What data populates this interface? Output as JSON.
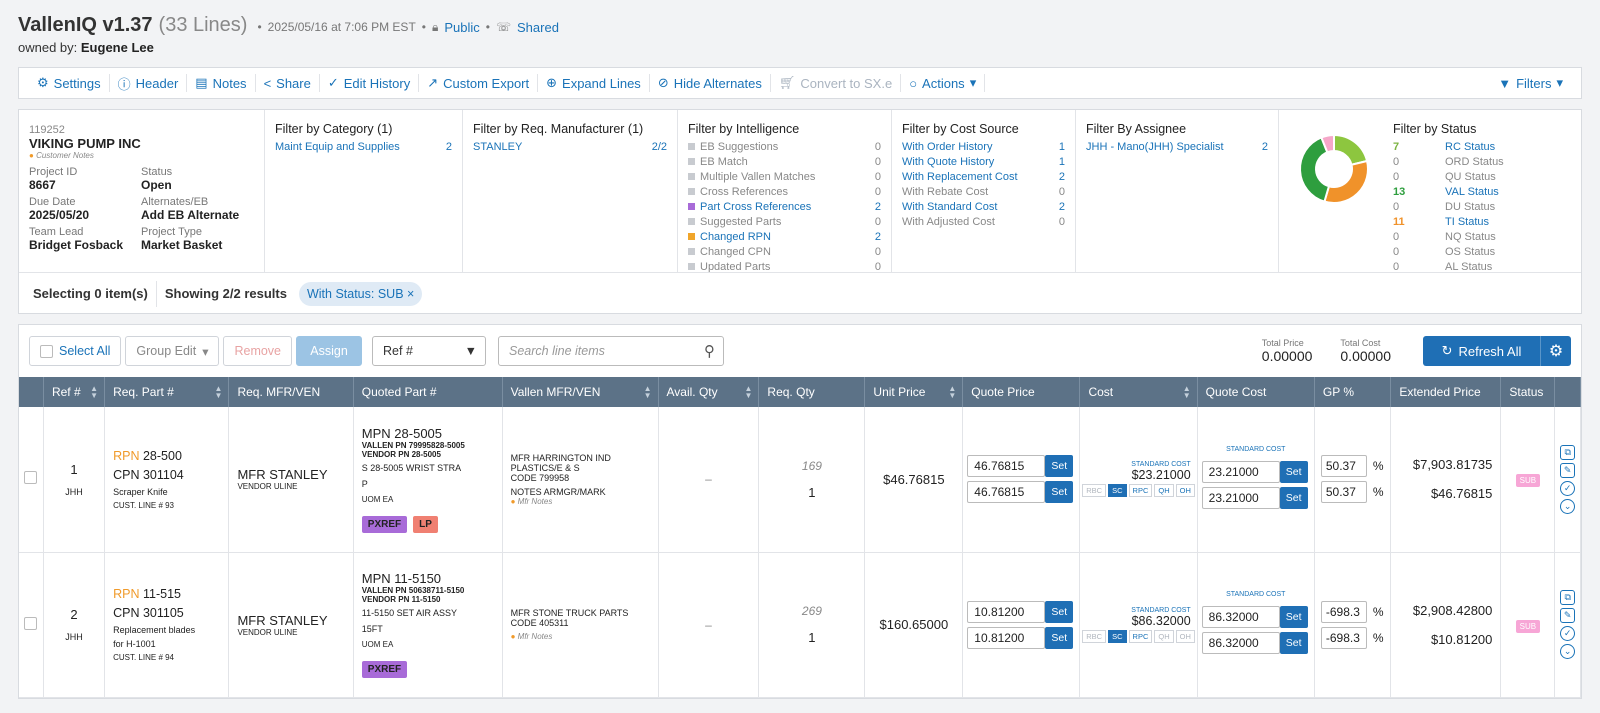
{
  "header": {
    "app_title": "VallenIQ v1.37",
    "lines": "(33 Lines)",
    "timestamp": "2025/05/16 at 7:06 PM EST",
    "public_label": "Public",
    "shared_label": "Shared",
    "owned_by_label": "owned by:",
    "owner": "Eugene Lee"
  },
  "toolbar": {
    "items": [
      {
        "label": "Settings",
        "icon": "gear-icon"
      },
      {
        "label": "Header",
        "icon": "info-icon"
      },
      {
        "label": "Notes",
        "icon": "notes-icon"
      },
      {
        "label": "Share",
        "icon": "share-icon"
      },
      {
        "label": "Edit History",
        "icon": "history-icon"
      },
      {
        "label": "Custom Export",
        "icon": "export-icon"
      },
      {
        "label": "Expand Lines",
        "icon": "expand-icon"
      },
      {
        "label": "Hide Alternates",
        "icon": "eye-slash-icon"
      },
      {
        "label": "Convert to SX.e",
        "icon": "cart-icon"
      },
      {
        "label": "Actions",
        "icon": "actions-icon"
      }
    ],
    "filters_label": "Filters"
  },
  "project": {
    "id": "119252",
    "name": "VIKING PUMP INC",
    "notes_label": "Customer Notes",
    "fields": [
      {
        "label": "Project ID",
        "value": "8667"
      },
      {
        "label": "Status",
        "value": "Open"
      },
      {
        "label": "Due Date",
        "value": "2025/05/20"
      },
      {
        "label": "Alternates/EB",
        "value": "Add EB Alternate"
      },
      {
        "label": "Team Lead",
        "value": "Bridget Fosback"
      },
      {
        "label": "Project Type",
        "value": "Market Basket"
      }
    ]
  },
  "filter_category": {
    "title": "Filter by Category (1)",
    "rows": [
      {
        "label": "Maint Equip and Supplies",
        "count": "2"
      }
    ]
  },
  "filter_manufacturer": {
    "title": "Filter by Req. Manufacturer (1)",
    "rows": [
      {
        "label": "STANLEY",
        "count": "2/2"
      }
    ]
  },
  "filter_intelligence": {
    "title": "Filter by Intelligence",
    "rows": [
      {
        "label": "EB Suggestions",
        "count": "0"
      },
      {
        "label": "EB Match",
        "count": "0"
      },
      {
        "label": "Multiple Vallen Matches",
        "count": "0"
      },
      {
        "label": "Cross References",
        "count": "0"
      },
      {
        "label": "Part Cross References",
        "count": "2"
      },
      {
        "label": "Suggested Parts",
        "count": "0"
      },
      {
        "label": "Changed RPN",
        "count": "2"
      },
      {
        "label": "Changed CPN",
        "count": "0"
      },
      {
        "label": "Updated Parts",
        "count": "0"
      }
    ]
  },
  "filter_cost": {
    "title": "Filter by Cost Source",
    "rows": [
      {
        "label": "With Order History",
        "count": "1"
      },
      {
        "label": "With Quote History",
        "count": "1"
      },
      {
        "label": "With Replacement Cost",
        "count": "2"
      },
      {
        "label": "With Rebate Cost",
        "count": "0"
      },
      {
        "label": "With Standard Cost",
        "count": "2"
      },
      {
        "label": "With Adjusted Cost",
        "count": "0"
      }
    ]
  },
  "filter_assignee": {
    "title": "Filter By Assignee",
    "rows": [
      {
        "label": "JHH - Mano(JHH) Specialist",
        "count": "2"
      }
    ]
  },
  "filter_status": {
    "title": "Filter by Status",
    "rows": [
      {
        "count": "7",
        "label": "RC Status",
        "color": "#7cb342"
      },
      {
        "count": "0",
        "label": "ORD Status",
        "color": "#888888"
      },
      {
        "count": "0",
        "label": "QU Status",
        "color": "#888888"
      },
      {
        "count": "13",
        "label": "VAL Status",
        "color": "#2e9e3e"
      },
      {
        "count": "0",
        "label": "DU Status",
        "color": "#888888"
      },
      {
        "count": "11",
        "label": "TI Status",
        "color": "#f0922a"
      },
      {
        "count": "0",
        "label": "NQ Status",
        "color": "#888888"
      },
      {
        "count": "0",
        "label": "OS Status",
        "color": "#888888"
      },
      {
        "count": "0",
        "label": "AL Status",
        "color": "#888888"
      }
    ]
  },
  "selection": {
    "selecting": "Selecting 0 item(s)",
    "showing": "Showing 2/2 results",
    "chip": "With Status: SUB"
  },
  "grid_tools": {
    "select_all": "Select All",
    "group_edit": "Group Edit",
    "remove": "Remove",
    "assign": "Assign",
    "ref_select": "Ref #",
    "search_placeholder": "Search line items",
    "total_price_label": "Total Price",
    "total_price": "0.00000",
    "total_cost_label": "Total Cost",
    "total_cost": "0.00000",
    "refresh": "Refresh All"
  },
  "columns": [
    "Ref #",
    "Req. Part #",
    "Req. MFR/VEN",
    "Quoted Part #",
    "Vallen MFR/VEN",
    "Avail. Qty",
    "Req. Qty",
    "Unit Price",
    "Quote Price",
    "Cost",
    "Quote Cost",
    "GP %",
    "Extended Price",
    "Status"
  ],
  "rows": [
    {
      "ref": "1",
      "assignee": "JHH",
      "rpn_label": "RPN",
      "rpn": "28-500",
      "cpn": "CPN 301104",
      "desc": "Scraper Knife",
      "desc2": "",
      "cust_line": "CUST. LINE # 93",
      "mfr": "MFR STANLEY",
      "vendor": "VENDOR ULINE",
      "mpn_label": "MPN",
      "mpn": "28-5005",
      "vallen_pn": "VALLEN PN 79995828-5005",
      "vendor_pn": "VENDOR PN 28-5005",
      "q_desc": "S 28-5005 WRIST STRA",
      "q_desc2": "P",
      "uom": "UOM EA",
      "tags": [
        "PXREF",
        "LP"
      ],
      "v_mfr": "MFR HARRINGTON IND",
      "v_mfr2": "PLASTICS/E & S",
      "code": "CODE 799958",
      "notes": "NOTES ARMGR/MARK",
      "mfr_notes": "Mfr Notes",
      "avail": "–",
      "req_hist": "169",
      "req_qty": "1",
      "unit_price": "$46.76815",
      "quote_price": "46.76815",
      "quote_price2": "46.76815",
      "std_label": "STANDARD COST",
      "cost": "$23.21000",
      "chips": [
        "RBC",
        "SC",
        "RPC",
        "QH",
        "OH"
      ],
      "qc_label": "STANDARD COST",
      "quote_cost": "23.21000",
      "quote_cost2": "23.21000",
      "gp": "50.37",
      "gp2": "50.37",
      "ext": "$7,903.81735",
      "ext2": "$46.76815",
      "status": "SUB"
    },
    {
      "ref": "2",
      "assignee": "JHH",
      "rpn_label": "RPN",
      "rpn": "11-515",
      "cpn": "CPN 301105",
      "desc": "Replacement blades",
      "desc2": "for H-1001",
      "cust_line": "CUST. LINE # 94",
      "mfr": "MFR STANLEY",
      "vendor": "VENDOR ULINE",
      "mpn_label": "MPN",
      "mpn": "11-5150",
      "vallen_pn": "VALLEN PN 50638711-5150",
      "vendor_pn": "VENDOR PN 11-5150",
      "q_desc": "11-5150 SET AIR ASSY",
      "q_desc2": "15FT",
      "uom": "UOM EA",
      "tags": [
        "PXREF"
      ],
      "v_mfr": "MFR STONE TRUCK PARTS",
      "v_mfr2": "",
      "code": "CODE 405311",
      "notes": "",
      "mfr_notes": "Mfr Notes",
      "avail": "–",
      "req_hist": "269",
      "req_qty": "1",
      "unit_price": "$160.65000",
      "quote_price": "10.81200",
      "quote_price2": "10.81200",
      "std_label": "STANDARD COST",
      "cost": "$86.32000",
      "chips": [
        "RBC",
        "SC",
        "RPC",
        "QH",
        "OH"
      ],
      "qc_label": "STANDARD COST",
      "quote_cost": "86.32000",
      "quote_cost2": "86.32000",
      "gp": "-698.3",
      "gp2": "-698.3",
      "ext": "$2,908.42800",
      "ext2": "$10.81200",
      "status": "SUB"
    }
  ],
  "donut": [
    {
      "label": "RC",
      "value": 7,
      "color": "#8dc63f"
    },
    {
      "label": "TI",
      "value": 11,
      "color": "#f0922a"
    },
    {
      "label": "VAL",
      "value": 13,
      "color": "#2e9e3e"
    },
    {
      "label": "other",
      "value": 2,
      "color": "#f5a7c8"
    }
  ]
}
